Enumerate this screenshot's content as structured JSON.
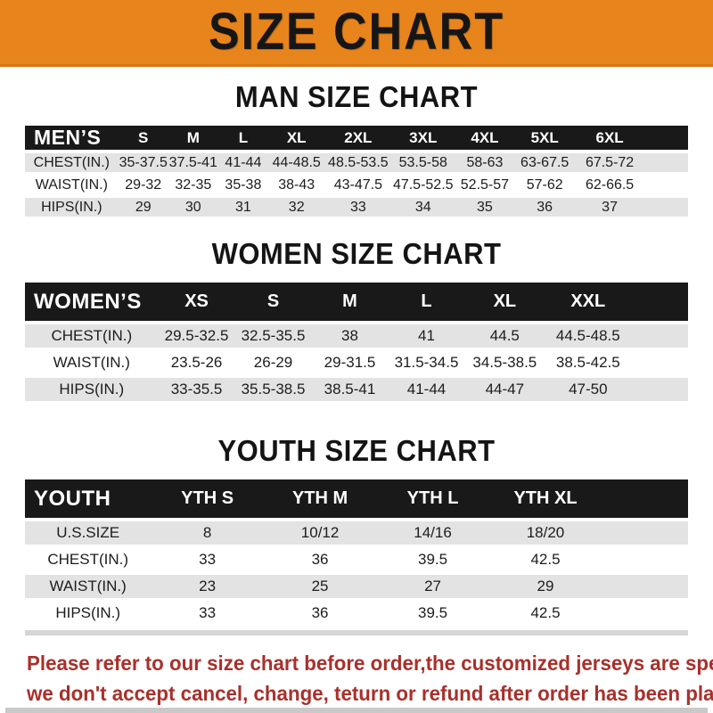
{
  "banner": {
    "title": "SIZE CHART"
  },
  "headings": {
    "men": "MAN SIZE CHART",
    "women": "WOMEN SIZE CHART",
    "youth": "YOUTH SIZE CHART"
  },
  "tables": {
    "men": {
      "label": "MEN’S",
      "columns": [
        "S",
        "M",
        "L",
        "XL",
        "2XL",
        "3XL",
        "4XL",
        "5XL",
        "6XL"
      ],
      "rows": [
        {
          "label": "CHEST(IN.)",
          "values": [
            "35-37.5",
            "37.5-41",
            "41-44",
            "44-48.5",
            "48.5-53.5",
            "53.5-58",
            "58-63",
            "63-67.5",
            "67.5-72"
          ]
        },
        {
          "label": "WAIST(IN.)",
          "values": [
            "29-32",
            "32-35",
            "35-38",
            "38-43",
            "43-47.5",
            "47.5-52.5",
            "52.5-57",
            "57-62",
            "62-66.5"
          ]
        },
        {
          "label": "HIPS(IN.)",
          "values": [
            "29",
            "30",
            "31",
            "32",
            "33",
            "34",
            "35",
            "36",
            "37"
          ]
        }
      ]
    },
    "women": {
      "label": "WOMEN’S",
      "columns": [
        "XS",
        "S",
        "M",
        "L",
        "XL",
        "XXL"
      ],
      "rows": [
        {
          "label": "CHEST(IN.)",
          "values": [
            "29.5-32.5",
            "32.5-35.5",
            "38",
            "41",
            "44.5",
            "44.5-48.5"
          ]
        },
        {
          "label": "WAIST(IN.)",
          "values": [
            "23.5-26",
            "26-29",
            "29-31.5",
            "31.5-34.5",
            "34.5-38.5",
            "38.5-42.5"
          ]
        },
        {
          "label": "HIPS(IN.)",
          "values": [
            "33-35.5",
            "35.5-38.5",
            "38.5-41",
            "41-44",
            "44-47",
            "47-50"
          ]
        }
      ]
    },
    "youth": {
      "label": "YOUTH",
      "columns": [
        "YTH S",
        "YTH M",
        "YTH L",
        "YTH XL"
      ],
      "rows": [
        {
          "label": "U.S.SIZE",
          "values": [
            "8",
            "10/12",
            "14/16",
            "18/20"
          ]
        },
        {
          "label": "CHEST(IN.)",
          "values": [
            "33",
            "36",
            "39.5",
            "42.5"
          ]
        },
        {
          "label": "WAIST(IN.)",
          "values": [
            "23",
            "25",
            "27",
            "29"
          ]
        },
        {
          "label": "HIPS(IN.)",
          "values": [
            "33",
            "36",
            "39.5",
            "42.5"
          ]
        }
      ]
    }
  },
  "footer": {
    "line1": "Please refer to our size chart before order,the customized jerseys are special products,",
    "line2": "we don't accept cancel, change, teturn or refund after order has been placed!"
  },
  "colors": {
    "banner_orange": "#E8841C",
    "header_black": "#191919",
    "row_gray": "#E3E3E3",
    "footer_red": "#A8302B"
  }
}
